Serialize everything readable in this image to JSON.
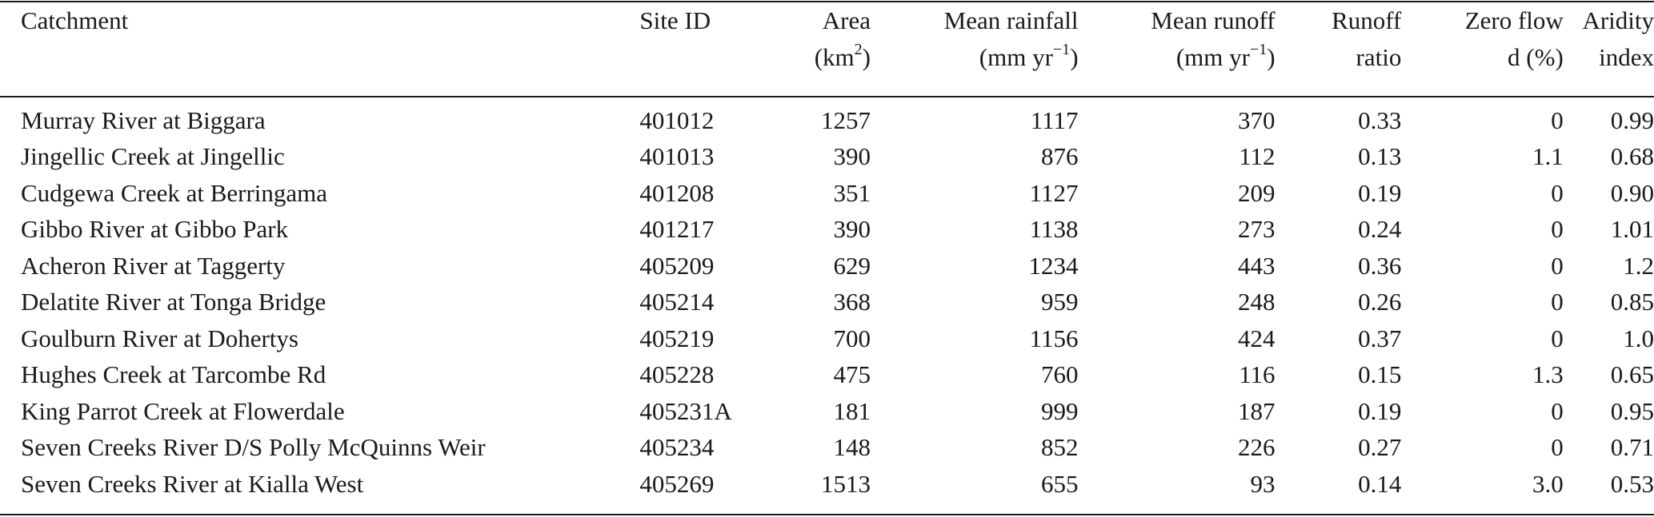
{
  "table": {
    "headers": [
      {
        "line1": "Catchment",
        "line2": ""
      },
      {
        "line1": "Site ID",
        "line2": ""
      },
      {
        "line1": "Area",
        "line2_pre": "(km",
        "line2_sup": "2",
        "line2_post": ")"
      },
      {
        "line1": "Mean rainfall",
        "line2_pre": "(mm yr",
        "line2_sup": "−1",
        "line2_post": ")"
      },
      {
        "line1": "Mean runoff",
        "line2_pre": "(mm yr",
        "line2_sup": "−1",
        "line2_post": ")"
      },
      {
        "line1": "Runoff",
        "line2": "ratio"
      },
      {
        "line1": "Zero flow",
        "line2": "d (%)"
      },
      {
        "line1": "Aridity",
        "line2": "index"
      }
    ],
    "rows": [
      [
        "Murray River at Biggara",
        "401012",
        "1257",
        "1117",
        "370",
        "0.33",
        "0",
        "0.99"
      ],
      [
        "Jingellic Creek at Jingellic",
        "401013",
        "390",
        "876",
        "112",
        "0.13",
        "1.1",
        "0.68"
      ],
      [
        "Cudgewa Creek at Berringama",
        "401208",
        "351",
        "1127",
        "209",
        "0.19",
        "0",
        "0.90"
      ],
      [
        "Gibbo River at Gibbo Park",
        "401217",
        "390",
        "1138",
        "273",
        "0.24",
        "0",
        "1.01"
      ],
      [
        "Acheron River at Taggerty",
        "405209",
        "629",
        "1234",
        "443",
        "0.36",
        "0",
        "1.2"
      ],
      [
        "Delatite River at Tonga Bridge",
        "405214",
        "368",
        "959",
        "248",
        "0.26",
        "0",
        "0.85"
      ],
      [
        "Goulburn River at Dohertys",
        "405219",
        "700",
        "1156",
        "424",
        "0.37",
        "0",
        "1.0"
      ],
      [
        "Hughes Creek at Tarcombe Rd",
        "405228",
        "475",
        "760",
        "116",
        "0.15",
        "1.3",
        "0.65"
      ],
      [
        "King Parrot Creek at Flowerdale",
        "405231A",
        "181",
        "999",
        "187",
        "0.19",
        "0",
        "0.95"
      ],
      [
        "Seven Creeks River D/S Polly McQuinns Weir",
        "405234",
        "148",
        "852",
        "226",
        "0.27",
        "0",
        "0.71"
      ],
      [
        "Seven Creeks River at Kialla West",
        "405269",
        "1513",
        "655",
        "93",
        "0.14",
        "3.0",
        "0.53"
      ]
    ]
  }
}
